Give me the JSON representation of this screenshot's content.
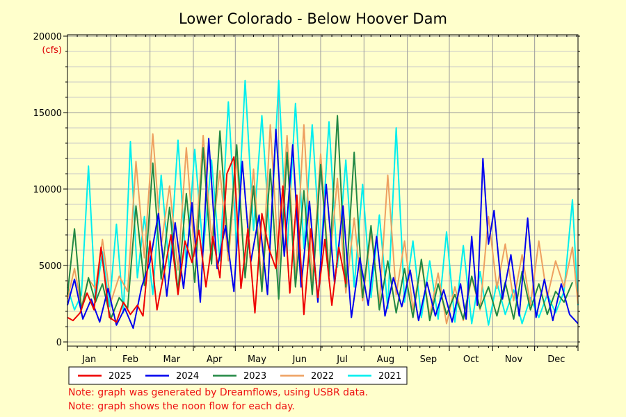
{
  "chart_data": {
    "type": "line",
    "title": "Lower Colorado - Below Hoover Dam",
    "ylabel_unit": "(cfs)",
    "ylim": [
      0,
      20000
    ],
    "y_ticks": [
      0,
      5000,
      10000,
      15000,
      20000
    ],
    "x_month_labels": [
      "Jan",
      "Feb",
      "Mar",
      "Apr",
      "May",
      "Jun",
      "Jul",
      "Aug",
      "Sep",
      "Oct",
      "Nov",
      "Dec"
    ],
    "xlim_day_of_year": [
      1,
      366
    ],
    "grid": true,
    "legend_position": "bottom",
    "series": [
      {
        "name": "2025",
        "color": "#ee0000",
        "x": [
          1,
          5,
          10,
          15,
          20,
          25,
          31,
          36,
          41,
          46,
          51,
          55,
          60,
          65,
          70,
          75,
          80,
          85,
          90,
          95,
          100,
          105,
          110,
          115,
          120,
          125,
          130,
          135,
          140,
          145,
          150,
          155,
          160,
          165,
          170,
          175,
          180,
          185,
          190,
          195,
          200
        ],
        "y": [
          1600,
          1400,
          1900,
          3200,
          2100,
          6200,
          1600,
          1300,
          2600,
          1800,
          2400,
          1700,
          6600,
          2100,
          4500,
          7000,
          3100,
          6600,
          5200,
          7300,
          3600,
          6900,
          4200,
          11000,
          12100,
          3500,
          7400,
          1900,
          8400,
          6100,
          4800,
          10200,
          3200,
          9600,
          1800,
          7400,
          2900,
          6700,
          2400,
          6200,
          3800
        ]
      },
      {
        "name": "2024",
        "color": "#0000ee",
        "x": [
          1,
          6,
          12,
          18,
          24,
          30,
          36,
          42,
          48,
          54,
          60,
          66,
          72,
          78,
          84,
          90,
          96,
          102,
          108,
          114,
          120,
          126,
          132,
          138,
          144,
          150,
          156,
          162,
          168,
          174,
          180,
          186,
          192,
          198,
          204,
          210,
          216,
          222,
          228,
          234,
          240,
          246,
          252,
          258,
          264,
          270,
          276,
          282,
          286,
          290,
          294,
          298,
          302,
          306,
          312,
          318,
          324,
          330,
          336,
          342,
          348,
          354,
          360,
          366
        ],
        "y": [
          2400,
          4100,
          1500,
          2800,
          1300,
          3500,
          1100,
          2200,
          900,
          3600,
          5200,
          8400,
          3000,
          7800,
          3500,
          9100,
          2600,
          13300,
          4800,
          7600,
          3300,
          11800,
          5200,
          8300,
          3100,
          13900,
          5600,
          12900,
          3600,
          9200,
          2600,
          10300,
          3800,
          8900,
          1600,
          5500,
          2400,
          6900,
          1700,
          4200,
          2300,
          4700,
          1400,
          3900,
          1700,
          3400,
          1300,
          3800,
          1500,
          6900,
          2400,
          12000,
          6400,
          8600,
          2800,
          5700,
          1700,
          8100,
          1600,
          4100,
          1400,
          3800,
          1800,
          1200
        ]
      },
      {
        "name": "2023",
        "color": "#228844",
        "x": [
          1,
          6,
          11,
          16,
          21,
          26,
          32,
          38,
          44,
          50,
          56,
          62,
          68,
          74,
          80,
          86,
          92,
          98,
          104,
          110,
          116,
          122,
          128,
          134,
          140,
          146,
          152,
          158,
          164,
          170,
          176,
          182,
          188,
          194,
          200,
          206,
          212,
          218,
          224,
          230,
          236,
          242,
          248,
          254,
          260,
          266,
          272,
          278,
          284,
          290,
          296,
          302,
          308,
          314,
          320,
          326,
          332,
          338,
          344,
          350,
          356,
          362
        ],
        "y": [
          3100,
          7400,
          2100,
          4200,
          2600,
          3800,
          1500,
          2900,
          2200,
          8900,
          3700,
          11700,
          4100,
          8800,
          3300,
          9700,
          3900,
          12700,
          5100,
          13800,
          5900,
          12900,
          4200,
          10200,
          3300,
          11300,
          2800,
          12400,
          3600,
          9900,
          3100,
          11600,
          4300,
          14800,
          3600,
          12400,
          2900,
          7600,
          2100,
          5300,
          1900,
          4800,
          1600,
          5400,
          1400,
          3800,
          1800,
          3100,
          1500,
          4300,
          2200,
          3600,
          1700,
          3900,
          1500,
          4600,
          2100,
          3800,
          1800,
          3300,
          2600,
          3900
        ]
      },
      {
        "name": "2022",
        "color": "#eea060",
        "x": [
          1,
          6,
          11,
          16,
          21,
          26,
          32,
          38,
          44,
          50,
          56,
          62,
          68,
          74,
          80,
          86,
          92,
          98,
          104,
          110,
          116,
          122,
          128,
          134,
          140,
          146,
          152,
          158,
          164,
          170,
          176,
          182,
          188,
          194,
          200,
          206,
          212,
          218,
          224,
          230,
          236,
          242,
          248,
          254,
          260,
          266,
          272,
          278,
          284,
          290,
          296,
          302,
          308,
          314,
          320,
          326,
          332,
          338,
          344,
          350,
          356,
          362,
          366
        ],
        "y": [
          2800,
          4800,
          2300,
          4100,
          3500,
          6700,
          2600,
          4300,
          3300,
          11800,
          5500,
          13600,
          6300,
          10200,
          4700,
          12700,
          5600,
          13500,
          6700,
          11200,
          5300,
          12000,
          4400,
          11300,
          3600,
          14200,
          5100,
          13500,
          4200,
          14200,
          3900,
          12300,
          4600,
          10700,
          3200,
          8100,
          2700,
          7200,
          2500,
          10900,
          3100,
          6600,
          2100,
          5200,
          1700,
          4500,
          1200,
          3600,
          1400,
          4200,
          2100,
          8200,
          3500,
          6400,
          2700,
          5700,
          2400,
          6600,
          2900,
          5300,
          3600,
          6200,
          2500
        ]
      },
      {
        "name": "2021",
        "color": "#00eeee",
        "x": [
          1,
          6,
          11,
          16,
          21,
          26,
          31,
          36,
          41,
          46,
          51,
          56,
          62,
          68,
          74,
          80,
          86,
          92,
          98,
          104,
          110,
          116,
          122,
          128,
          134,
          140,
          146,
          152,
          158,
          164,
          170,
          176,
          182,
          188,
          194,
          200,
          206,
          212,
          218,
          224,
          230,
          236,
          242,
          248,
          254,
          260,
          266,
          272,
          278,
          284,
          290,
          296,
          302,
          308,
          314,
          320,
          326,
          332,
          338,
          344,
          350,
          356,
          362,
          366
        ],
        "y": [
          3600,
          2100,
          3100,
          11500,
          2700,
          5900,
          2300,
          7700,
          1900,
          13100,
          4200,
          8200,
          3100,
          10900,
          4600,
          13200,
          4900,
          12600,
          5900,
          11900,
          5300,
          15700,
          6200,
          17100,
          7300,
          14800,
          6400,
          17100,
          5800,
          15600,
          6100,
          14200,
          5400,
          14400,
          4900,
          11900,
          3600,
          10300,
          2900,
          8300,
          2200,
          14000,
          2600,
          6600,
          1600,
          5300,
          1500,
          7200,
          1300,
          6300,
          1200,
          4600,
          1100,
          3900,
          1800,
          3400,
          1200,
          2900,
          1600,
          3100,
          1900,
          3300,
          9300,
          2400
        ]
      }
    ]
  },
  "notes": {
    "line1": "Note: graph was generated by Dreamflows, using USBR data.",
    "line2": "Note: graph shows the noon flow for each day."
  }
}
